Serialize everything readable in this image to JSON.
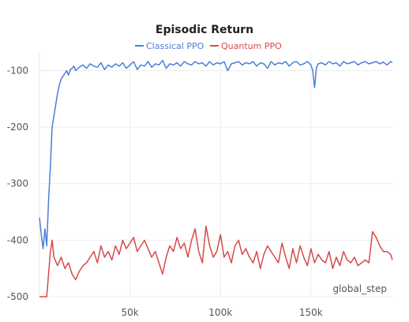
{
  "chart_data": {
    "type": "line",
    "title": "Episodic Return",
    "xlabel": "global_step",
    "ylabel": "",
    "xlim": [
      0,
      195000
    ],
    "ylim": [
      -500,
      -70
    ],
    "x_ticks": [
      50000,
      100000,
      150000
    ],
    "x_tick_labels": [
      "50k",
      "100k",
      "150k"
    ],
    "y_ticks": [
      -100,
      -200,
      -300,
      -400,
      -500
    ],
    "y_tick_labels": [
      "-100",
      "-200",
      "-300",
      "-400",
      "-500"
    ],
    "grid": true,
    "legend_position": "top-center",
    "series": [
      {
        "name": "Classical PPO",
        "color": "#4a7fd6",
        "x": [
          0,
          1000,
          2000,
          3000,
          4000,
          5000,
          6000,
          7000,
          8000,
          9000,
          10000,
          11000,
          12000,
          13000,
          14000,
          15000,
          16000,
          17000,
          18000,
          19000,
          20000,
          22000,
          24000,
          26000,
          28000,
          30000,
          32000,
          34000,
          36000,
          38000,
          40000,
          42000,
          44000,
          46000,
          48000,
          50000,
          52000,
          54000,
          56000,
          58000,
          60000,
          62000,
          64000,
          66000,
          68000,
          70000,
          72000,
          74000,
          76000,
          78000,
          80000,
          82000,
          84000,
          86000,
          88000,
          90000,
          92000,
          94000,
          96000,
          98000,
          100000,
          102000,
          104000,
          106000,
          108000,
          110000,
          112000,
          114000,
          116000,
          118000,
          120000,
          122000,
          124000,
          126000,
          128000,
          130000,
          132000,
          134000,
          136000,
          138000,
          140000,
          142000,
          144000,
          146000,
          148000,
          150000,
          151000,
          152000,
          153000,
          154000,
          156000,
          158000,
          160000,
          162000,
          164000,
          166000,
          168000,
          170000,
          172000,
          174000,
          176000,
          178000,
          180000,
          182000,
          184000,
          186000,
          188000,
          190000,
          192000,
          194000,
          195000
        ],
        "y": [
          -360,
          -390,
          -415,
          -380,
          -410,
          -330,
          -270,
          -200,
          -180,
          -160,
          -140,
          -125,
          -115,
          -110,
          -105,
          -100,
          -108,
          -98,
          -96,
          -92,
          -100,
          -94,
          -90,
          -96,
          -88,
          -92,
          -94,
          -86,
          -98,
          -90,
          -94,
          -88,
          -92,
          -86,
          -96,
          -90,
          -84,
          -98,
          -90,
          -92,
          -84,
          -94,
          -88,
          -90,
          -82,
          -96,
          -88,
          -90,
          -86,
          -92,
          -84,
          -88,
          -90,
          -84,
          -88,
          -86,
          -92,
          -84,
          -90,
          -86,
          -88,
          -84,
          -100,
          -88,
          -86,
          -84,
          -90,
          -86,
          -88,
          -84,
          -92,
          -86,
          -88,
          -96,
          -84,
          -90,
          -86,
          -88,
          -84,
          -92,
          -86,
          -84,
          -90,
          -88,
          -84,
          -90,
          -100,
          -130,
          -95,
          -88,
          -86,
          -90,
          -84,
          -88,
          -86,
          -92,
          -84,
          -88,
          -86,
          -84,
          -90,
          -86,
          -84,
          -88,
          -86,
          -84,
          -88,
          -85,
          -90,
          -84,
          -86
        ]
      },
      {
        "name": "Quantum PPO",
        "color": "#d64a4a",
        "x": [
          0,
          2000,
          4000,
          5000,
          6000,
          7000,
          8000,
          10000,
          12000,
          14000,
          16000,
          18000,
          20000,
          22000,
          24000,
          26000,
          28000,
          30000,
          32000,
          34000,
          36000,
          38000,
          40000,
          42000,
          44000,
          46000,
          48000,
          50000,
          52000,
          54000,
          56000,
          58000,
          60000,
          62000,
          64000,
          66000,
          68000,
          70000,
          72000,
          74000,
          76000,
          78000,
          80000,
          82000,
          84000,
          86000,
          88000,
          90000,
          92000,
          94000,
          96000,
          98000,
          100000,
          102000,
          104000,
          106000,
          108000,
          110000,
          112000,
          114000,
          116000,
          118000,
          120000,
          122000,
          124000,
          126000,
          128000,
          130000,
          132000,
          134000,
          136000,
          138000,
          140000,
          142000,
          144000,
          146000,
          148000,
          150000,
          152000,
          154000,
          156000,
          158000,
          160000,
          162000,
          164000,
          166000,
          168000,
          170000,
          172000,
          174000,
          176000,
          178000,
          180000,
          182000,
          184000,
          186000,
          188000,
          190000,
          192000,
          194000,
          195000
        ],
        "y": [
          -500,
          -500,
          -500,
          -460,
          -420,
          -400,
          -430,
          -445,
          -430,
          -450,
          -440,
          -460,
          -470,
          -455,
          -445,
          -440,
          -430,
          -420,
          -440,
          -410,
          -430,
          -420,
          -435,
          -410,
          -425,
          -400,
          -415,
          -405,
          -395,
          -420,
          -410,
          -400,
          -415,
          -430,
          -420,
          -440,
          -460,
          -430,
          -410,
          -420,
          -395,
          -415,
          -405,
          -430,
          -400,
          -380,
          -420,
          -440,
          -375,
          -410,
          -430,
          -420,
          -390,
          -430,
          -420,
          -440,
          -410,
          -400,
          -425,
          -415,
          -430,
          -440,
          -420,
          -450,
          -425,
          -410,
          -420,
          -430,
          -440,
          -405,
          -430,
          -450,
          -415,
          -440,
          -410,
          -430,
          -445,
          -415,
          -440,
          -425,
          -435,
          -440,
          -420,
          -450,
          -430,
          -445,
          -420,
          -435,
          -440,
          -430,
          -445,
          -440,
          -435,
          -440,
          -385,
          -395,
          -410,
          -420,
          -420,
          -425,
          -435
        ]
      }
    ]
  }
}
